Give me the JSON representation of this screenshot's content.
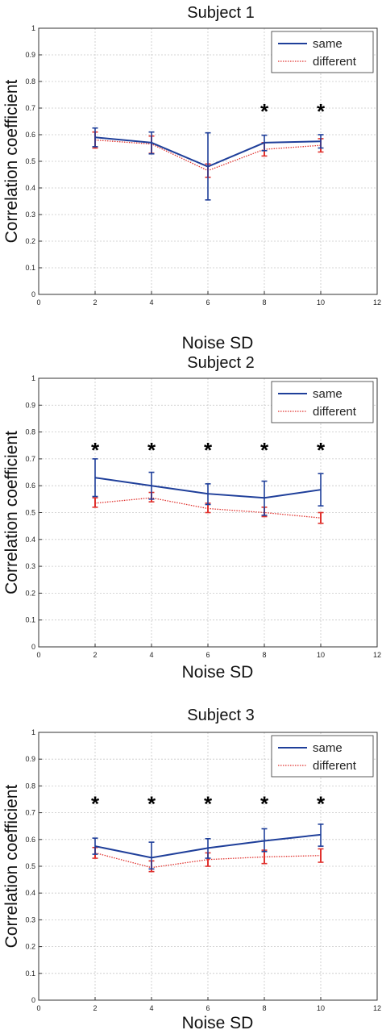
{
  "chart_data": [
    {
      "type": "line",
      "title": "Subject 1",
      "xlabel": "Noise SD",
      "ylabel": "Correlation coefficient",
      "xlim": [
        0,
        12
      ],
      "ylim": [
        0,
        1
      ],
      "xticks": [
        "0",
        "2",
        "4",
        "6",
        "8",
        "10",
        "12"
      ],
      "yticks": [
        "0",
        "0.1",
        "0.2",
        "0.3",
        "0.4",
        "0.5",
        "0.6",
        "0.7",
        "0.8",
        "0.9",
        "1"
      ],
      "grid": true,
      "legend_position": "top-right",
      "x": [
        2,
        4,
        6,
        8,
        10
      ],
      "series": [
        {
          "name": "same",
          "color": "#1f3f9a",
          "style": "solid",
          "values": [
            0.59,
            0.57,
            0.48,
            0.57,
            0.575
          ],
          "lower": [
            0.555,
            0.528,
            0.355,
            0.54,
            0.55
          ],
          "upper": [
            0.625,
            0.61,
            0.607,
            0.598,
            0.6
          ]
        },
        {
          "name": "different",
          "color": "#e0322e",
          "style": "dotted",
          "values": [
            0.58,
            0.565,
            0.465,
            0.545,
            0.56
          ],
          "lower": [
            0.55,
            0.53,
            0.44,
            0.52,
            0.535
          ],
          "upper": [
            0.61,
            0.595,
            0.49,
            0.57,
            0.585
          ]
        }
      ],
      "significance_markers": [
        {
          "x": 8,
          "label": "*"
        },
        {
          "x": 10,
          "label": "*"
        }
      ]
    },
    {
      "type": "line",
      "title": "Subject 2",
      "xlabel": "Noise SD",
      "ylabel": "Correlation coefficient",
      "xlim": [
        0,
        12
      ],
      "ylim": [
        0,
        1
      ],
      "xticks": [
        "0",
        "2",
        "4",
        "6",
        "8",
        "10",
        "12"
      ],
      "yticks": [
        "0",
        "0.1",
        "0.2",
        "0.3",
        "0.4",
        "0.5",
        "0.6",
        "0.7",
        "0.8",
        "0.9",
        "1"
      ],
      "grid": true,
      "legend_position": "top-right",
      "x": [
        2,
        4,
        6,
        8,
        10
      ],
      "series": [
        {
          "name": "same",
          "color": "#1f3f9a",
          "style": "solid",
          "values": [
            0.63,
            0.6,
            0.57,
            0.555,
            0.585
          ],
          "lower": [
            0.56,
            0.55,
            0.53,
            0.49,
            0.525
          ],
          "upper": [
            0.7,
            0.65,
            0.607,
            0.617,
            0.645
          ]
        },
        {
          "name": "different",
          "color": "#e0322e",
          "style": "dotted",
          "values": [
            0.535,
            0.555,
            0.515,
            0.5,
            0.48
          ],
          "lower": [
            0.52,
            0.54,
            0.5,
            0.485,
            0.46
          ],
          "upper": [
            0.555,
            0.575,
            0.535,
            0.52,
            0.5
          ]
        }
      ],
      "significance_markers": [
        {
          "x": 2,
          "label": "*"
        },
        {
          "x": 4,
          "label": "*"
        },
        {
          "x": 6,
          "label": "*"
        },
        {
          "x": 8,
          "label": "*"
        },
        {
          "x": 10,
          "label": "*"
        }
      ]
    },
    {
      "type": "line",
      "title": "Subject 3",
      "xlabel": "Noise SD",
      "ylabel": "Correlation coefficient",
      "xlim": [
        0,
        12
      ],
      "ylim": [
        0,
        1
      ],
      "xticks": [
        "0",
        "2",
        "4",
        "6",
        "8",
        "10",
        "12"
      ],
      "yticks": [
        "0",
        "0.1",
        "0.2",
        "0.3",
        "0.4",
        "0.5",
        "0.6",
        "0.7",
        "0.8",
        "0.9",
        "1"
      ],
      "grid": true,
      "legend_position": "top-right",
      "x": [
        2,
        4,
        6,
        8,
        10
      ],
      "series": [
        {
          "name": "same",
          "color": "#1f3f9a",
          "style": "solid",
          "values": [
            0.575,
            0.532,
            0.568,
            0.595,
            0.618
          ],
          "lower": [
            0.545,
            0.49,
            0.53,
            0.555,
            0.575
          ],
          "upper": [
            0.605,
            0.59,
            0.603,
            0.64,
            0.657
          ]
        },
        {
          "name": "different",
          "color": "#e0322e",
          "style": "dotted",
          "values": [
            0.55,
            0.495,
            0.525,
            0.535,
            0.54
          ],
          "lower": [
            0.53,
            0.48,
            0.5,
            0.51,
            0.515
          ],
          "upper": [
            0.57,
            0.52,
            0.55,
            0.56,
            0.565
          ]
        }
      ],
      "significance_markers": [
        {
          "x": 2,
          "label": "*"
        },
        {
          "x": 4,
          "label": "*"
        },
        {
          "x": 6,
          "label": "*"
        },
        {
          "x": 8,
          "label": "*"
        },
        {
          "x": 10,
          "label": "*"
        }
      ]
    }
  ]
}
